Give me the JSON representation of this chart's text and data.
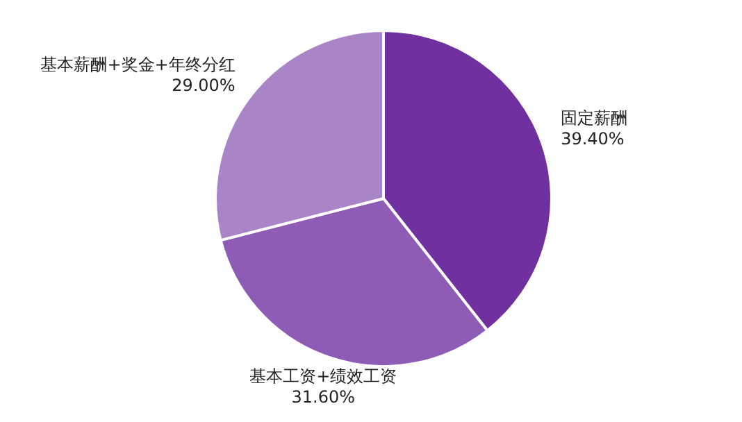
{
  "chart_data": {
    "type": "pie",
    "categories": [
      "固定薪酬",
      "基本工资+绩效工资",
      "基本薪酬+奖金+年终分红"
    ],
    "values": [
      39.4,
      31.6,
      29.0
    ],
    "value_labels": [
      "39.40%",
      "31.60%",
      "29.00%"
    ],
    "colors": [
      "#7030a0",
      "#8e5cb5",
      "#a985c8"
    ]
  }
}
